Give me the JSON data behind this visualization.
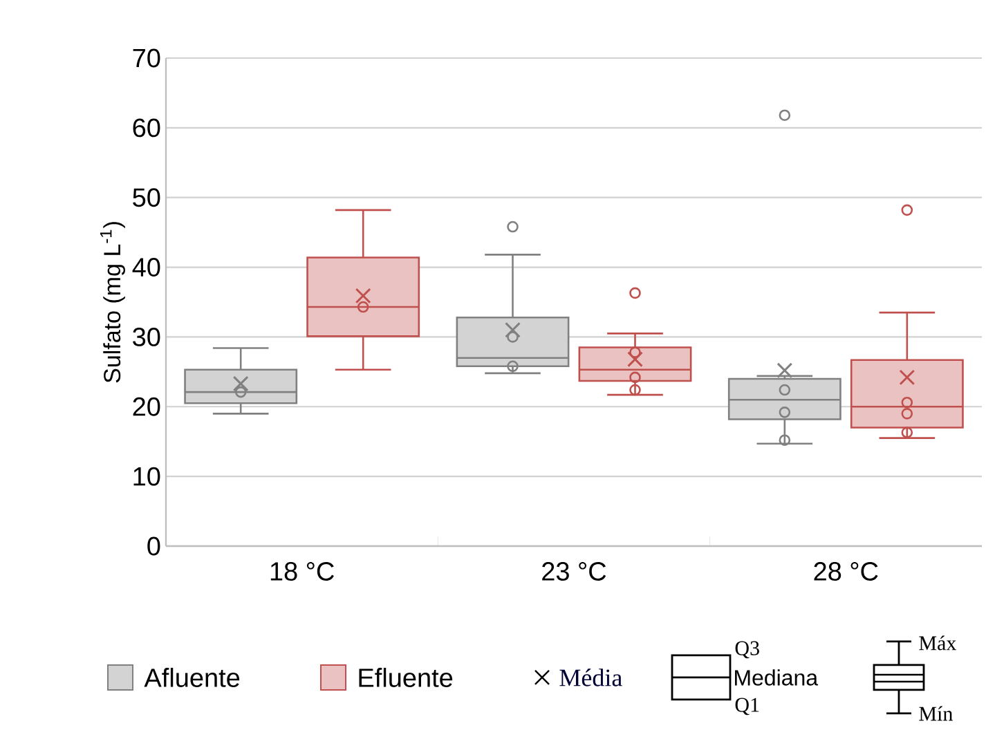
{
  "chart_data": {
    "type": "box",
    "ylabel": "Sulfato (mg L$^{-1}$)",
    "categories": [
      "18 °C",
      "23 °C",
      "28 °C"
    ],
    "ylim": [
      0,
      70
    ],
    "yticks": [
      0,
      10,
      20,
      30,
      40,
      50,
      60,
      70
    ],
    "grid": "y",
    "legend": "bottom",
    "series": [
      {
        "name": "Afluente",
        "color": "#808080",
        "boxes": [
          {
            "low": 19.0,
            "q1": 20.5,
            "median": 22.1,
            "q3": 25.3,
            "high": 28.4,
            "mean": 23.3,
            "outliers": [
              22.1
            ]
          },
          {
            "low": 24.8,
            "q1": 25.8,
            "median": 27.0,
            "q3": 32.8,
            "high": 41.8,
            "mean": 31.0,
            "outliers": [
              45.8,
              30.0,
              25.8
            ]
          },
          {
            "low": 14.7,
            "q1": 18.2,
            "median": 21.0,
            "q3": 24.0,
            "high": 24.4,
            "mean": 25.2,
            "outliers": [
              61.8,
              22.4,
              19.2,
              15.2
            ]
          }
        ]
      },
      {
        "name": "Efluente",
        "color": "#c0504d",
        "boxes": [
          {
            "low": 25.3,
            "q1": 30.1,
            "median": 34.3,
            "q3": 41.4,
            "high": 48.2,
            "mean": 35.9,
            "outliers": [
              34.3
            ]
          },
          {
            "low": 21.7,
            "q1": 23.7,
            "median": 25.3,
            "q3": 28.5,
            "high": 30.5,
            "mean": 26.8,
            "outliers": [
              36.3,
              27.8,
              24.2,
              22.4
            ]
          },
          {
            "low": 15.5,
            "q1": 17.0,
            "median": 20.0,
            "q3": 26.7,
            "high": 33.5,
            "mean": 24.2,
            "outliers": [
              48.2,
              20.6,
              19.0,
              16.3
            ]
          }
        ]
      }
    ],
    "annotations": [
      "Média",
      "Q3",
      "Mediana",
      "Q1",
      "Máx",
      "Mín"
    ]
  }
}
